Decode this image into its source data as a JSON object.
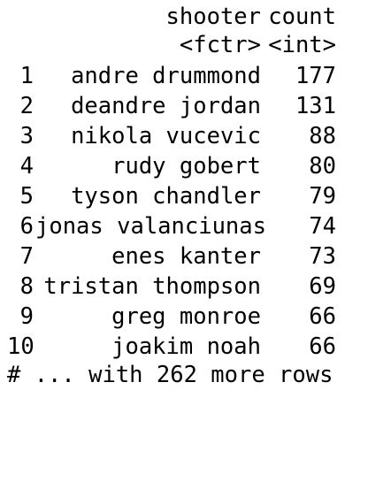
{
  "table": {
    "columns": [
      {
        "name": "shooter",
        "type": "<fctr>"
      },
      {
        "name": "count",
        "type": "<int>"
      }
    ],
    "rows": [
      {
        "index": "1",
        "shooter": "andre drummond",
        "count": "177"
      },
      {
        "index": "2",
        "shooter": "deandre jordan",
        "count": "131"
      },
      {
        "index": "3",
        "shooter": "nikola vucevic",
        "count": "88"
      },
      {
        "index": "4",
        "shooter": "rudy gobert",
        "count": "80"
      },
      {
        "index": "5",
        "shooter": "tyson chandler",
        "count": "79"
      },
      {
        "index": "6",
        "shooter": "jonas valanciunas",
        "count": "74"
      },
      {
        "index": "7",
        "shooter": "enes kanter",
        "count": "73"
      },
      {
        "index": "8",
        "shooter": "tristan thompson",
        "count": "69"
      },
      {
        "index": "9",
        "shooter": "greg monroe",
        "count": "66"
      },
      {
        "index": "10",
        "shooter": "joakim noah",
        "count": "66"
      }
    ],
    "footer": "# ... with 262 more rows"
  }
}
